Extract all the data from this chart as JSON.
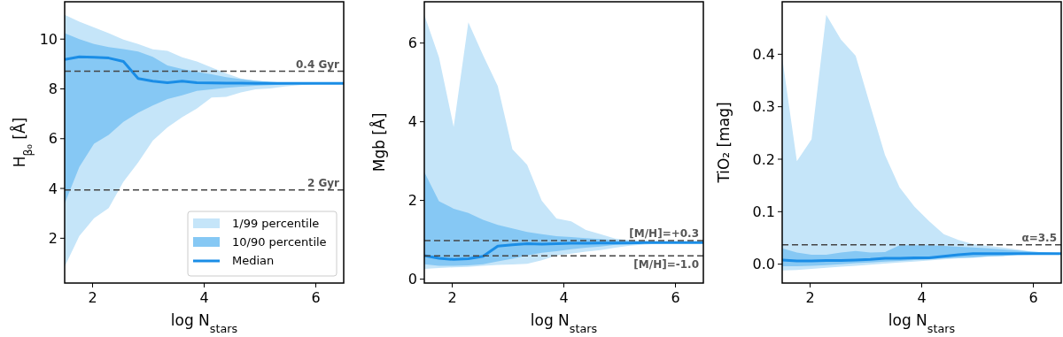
{
  "chart_data": [
    {
      "type": "line",
      "xlabel": "log N$_{stars}$",
      "ylabel": "H$_{β₀}$ [Å]",
      "x": [
        1.5,
        1.763,
        2.026,
        2.289,
        2.553,
        2.816,
        3.079,
        3.342,
        3.605,
        3.868,
        4.132,
        4.395,
        4.658,
        4.921,
        5.184,
        5.447,
        5.711,
        5.974,
        6.237,
        6.5
      ],
      "xlim": [
        1.5,
        6.5
      ],
      "ylim": [
        0.2,
        11.5
      ],
      "xticks": [
        2,
        4,
        6
      ],
      "yticks": [
        2,
        4,
        6,
        8,
        10
      ],
      "legend": "bottom right",
      "series": [
        {
          "name": "1/99 percentile",
          "color": "#c5e5f9",
          "values": [
            null,
            null,
            null,
            null,
            null,
            null,
            null,
            null,
            null,
            null,
            null,
            null,
            null,
            null,
            null,
            null,
            null,
            null,
            null,
            null
          ],
          "lower": [
            0.86,
            2.09,
            2.8,
            3.21,
            4.27,
            5.04,
            5.92,
            6.45,
            6.86,
            7.21,
            7.65,
            7.68,
            7.86,
            7.98,
            8.02,
            8.1,
            8.15,
            8.19,
            8.21,
            8.22
          ],
          "upper": [
            10.98,
            10.7,
            10.47,
            10.24,
            9.98,
            9.8,
            9.59,
            9.53,
            9.27,
            9.1,
            8.86,
            8.62,
            8.42,
            8.33,
            8.27,
            8.25,
            8.23,
            8.22,
            8.22,
            8.22
          ]
        },
        {
          "name": "10/90 percentile",
          "color": "#86c8f4",
          "values": [
            null,
            null,
            null,
            null,
            null,
            null,
            null,
            null,
            null,
            null,
            null,
            null,
            null,
            null,
            null,
            null,
            null,
            null,
            null,
            null
          ],
          "lower": [
            3.39,
            4.86,
            5.8,
            6.15,
            6.68,
            7.04,
            7.33,
            7.59,
            7.74,
            7.92,
            7.98,
            8.04,
            8.09,
            8.12,
            8.15,
            8.18,
            8.2,
            8.21,
            8.22,
            8.22
          ],
          "upper": [
            10.24,
            10.0,
            9.8,
            9.68,
            9.6,
            9.5,
            9.29,
            8.94,
            8.8,
            8.68,
            8.59,
            8.47,
            8.39,
            8.33,
            8.28,
            8.25,
            8.23,
            8.22,
            8.22,
            8.22
          ]
        },
        {
          "name": "Median",
          "color": "#1a8de6",
          "values": [
            9.18,
            9.29,
            9.27,
            9.24,
            9.1,
            8.42,
            8.31,
            8.25,
            8.31,
            8.25,
            8.24,
            8.23,
            8.23,
            8.22,
            8.22,
            8.22,
            8.22,
            8.22,
            8.22,
            8.22
          ]
        }
      ],
      "ref_lines": [
        {
          "axis": "y",
          "value": 8.71,
          "color": "#444444",
          "line_style": "dashed"
        },
        {
          "axis": "y",
          "value": 3.94,
          "color": "#444444",
          "line_style": "dashed"
        }
      ],
      "annotations": [
        {
          "text": "0.4 Gyr",
          "y": 8.71
        },
        {
          "text": "2 Gyr",
          "y": 3.94
        }
      ]
    },
    {
      "type": "line",
      "xlabel": "log N$_{stars}$",
      "ylabel": "Mgb [Å]",
      "x": [
        1.5,
        1.763,
        2.026,
        2.289,
        2.553,
        2.816,
        3.079,
        3.342,
        3.605,
        3.868,
        4.132,
        4.395,
        4.658,
        4.921,
        5.184,
        5.447,
        5.711,
        5.974,
        6.237,
        6.5
      ],
      "xlim": [
        1.5,
        6.5
      ],
      "ylim": [
        -0.1,
        7.05
      ],
      "xticks": [
        2,
        4,
        6
      ],
      "yticks": [
        0,
        2,
        4,
        6
      ],
      "series": [
        {
          "color": "#c5e5f9",
          "values": [
            null,
            null,
            null,
            null,
            null,
            null,
            null,
            null,
            null,
            null,
            null,
            null,
            null,
            null,
            null,
            null,
            null,
            null,
            null,
            null
          ],
          "lower": [
            0.26,
            0.28,
            0.3,
            0.31,
            0.34,
            0.36,
            0.37,
            0.39,
            0.48,
            0.6,
            0.65,
            0.7,
            0.74,
            0.8,
            0.85,
            0.88,
            0.9,
            0.92,
            0.93,
            0.93
          ],
          "upper": [
            6.72,
            5.64,
            3.87,
            6.53,
            5.69,
            4.91,
            3.3,
            2.91,
            1.99,
            1.54,
            1.47,
            1.25,
            1.14,
            1.03,
            0.99,
            0.97,
            0.95,
            0.94,
            0.93,
            0.93
          ]
        },
        {
          "color": "#86c8f4",
          "values": [
            null,
            null,
            null,
            null,
            null,
            null,
            null,
            null,
            null,
            null,
            null,
            null,
            null,
            null,
            null,
            null,
            null,
            null,
            null,
            null
          ],
          "lower": [
            0.38,
            0.34,
            0.34,
            0.35,
            0.38,
            0.45,
            0.52,
            0.6,
            0.67,
            0.71,
            0.76,
            0.8,
            0.83,
            0.87,
            0.89,
            0.91,
            0.92,
            0.93,
            0.93,
            0.93
          ],
          "upper": [
            2.72,
            1.98,
            1.79,
            1.68,
            1.51,
            1.38,
            1.29,
            1.2,
            1.14,
            1.09,
            1.07,
            1.04,
            1.02,
            0.99,
            0.97,
            0.95,
            0.94,
            0.93,
            0.93,
            0.93
          ]
        },
        {
          "color": "#1a8de6",
          "values": [
            0.6,
            0.53,
            0.5,
            0.52,
            0.58,
            0.84,
            0.87,
            0.9,
            0.89,
            0.9,
            0.91,
            0.91,
            0.92,
            0.92,
            0.92,
            0.93,
            0.93,
            0.93,
            0.93,
            0.93
          ]
        }
      ],
      "ref_lines": [
        {
          "axis": "y",
          "value": 0.98,
          "color": "#444444",
          "line_style": "dashed"
        },
        {
          "axis": "y",
          "value": 0.59,
          "color": "#444444",
          "line_style": "dashed"
        }
      ],
      "annotations": [
        {
          "text": "[M/H]=+0.3",
          "y": 0.98
        },
        {
          "text": "[M/H]=-1.0",
          "y": 0.59
        }
      ]
    },
    {
      "type": "line",
      "xlabel": "log N$_{stars}$",
      "ylabel": "TiO₂ [mag]",
      "x": [
        1.5,
        1.763,
        2.026,
        2.289,
        2.553,
        2.816,
        3.079,
        3.342,
        3.605,
        3.868,
        4.132,
        4.395,
        4.658,
        4.921,
        5.184,
        5.447,
        5.711,
        5.974,
        6.237,
        6.5
      ],
      "xlim": [
        1.5,
        6.5
      ],
      "ylim": [
        -0.036,
        0.5
      ],
      "xticks": [
        2,
        4,
        6
      ],
      "yticks": [
        {
          "value": 0,
          "label": "0.0"
        },
        0.1,
        0.2,
        0.3,
        0.4
      ],
      "series": [
        {
          "color": "#c5e5f9",
          "values": [
            null,
            null,
            null,
            null,
            null,
            null,
            null,
            null,
            null,
            null,
            null,
            null,
            null,
            null,
            null,
            null,
            null,
            null,
            null,
            null
          ],
          "lower": [
            -0.012,
            -0.011,
            -0.009,
            -0.007,
            -0.005,
            -0.003,
            -0.001,
            0.001,
            0.003,
            0.005,
            0.007,
            0.009,
            0.011,
            0.012,
            0.014,
            0.015,
            0.017,
            0.018,
            0.019,
            0.02
          ],
          "upper": [
            0.394,
            0.196,
            0.238,
            0.475,
            0.428,
            0.397,
            0.302,
            0.208,
            0.146,
            0.11,
            0.082,
            0.057,
            0.046,
            0.038,
            0.035,
            0.032,
            0.028,
            0.024,
            0.022,
            0.021
          ]
        },
        {
          "color": "#86c8f4",
          "values": [
            null,
            null,
            null,
            null,
            null,
            null,
            null,
            null,
            null,
            null,
            null,
            null,
            null,
            null,
            null,
            null,
            null,
            null,
            null,
            null
          ],
          "lower": [
            -0.004,
            -0.004,
            -0.003,
            -0.002,
            0,
            0.002,
            0.003,
            0.005,
            0.006,
            0.008,
            0.009,
            0.011,
            0.012,
            0.013,
            0.015,
            0.016,
            0.018,
            0.019,
            0.02,
            0.02
          ],
          "upper": [
            0.03,
            0.022,
            0.018,
            0.018,
            0.022,
            0.025,
            0.022,
            0.023,
            0.036,
            0.036,
            0.036,
            0.035,
            0.033,
            0.032,
            0.03,
            0.028,
            0.026,
            0.024,
            0.022,
            0.021
          ]
        },
        {
          "color": "#1a8de6",
          "values": [
            0.008,
            0.006,
            0.006,
            0.007,
            0.007,
            0.008,
            0.009,
            0.011,
            0.011,
            0.012,
            0.012,
            0.015,
            0.018,
            0.02,
            0.02,
            0.02,
            0.02,
            0.02,
            0.02,
            0.02
          ]
        }
      ],
      "ref_lines": [
        {
          "axis": "y",
          "value": 0.037,
          "color": "#444444",
          "line_style": "dashed"
        }
      ],
      "annotations": [
        {
          "text": "α=3.5",
          "y": 0.037
        }
      ]
    }
  ]
}
